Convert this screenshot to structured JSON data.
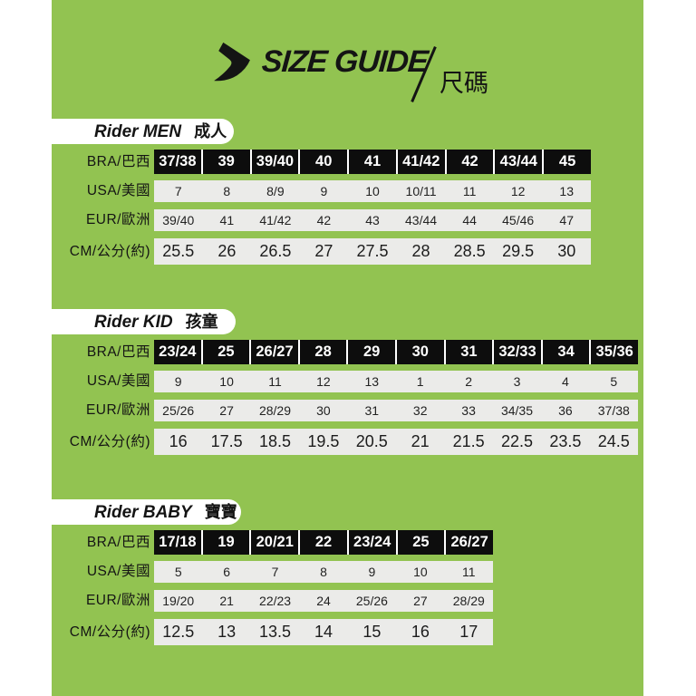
{
  "colors": {
    "panel_green": "#92c351",
    "cell_black": "#0d0d0d",
    "row_gray": "#ebebe9",
    "pill_white": "#ffffff",
    "text_black": "#141414"
  },
  "header": {
    "logo_icon": "rider-swoosh-logo",
    "title": "SIZE GUIDE",
    "subtitle": "尺碼"
  },
  "row_labels": {
    "bra": "BRA/巴西",
    "usa": "USA/美國",
    "eur": "EUR/歐洲",
    "cm": "CM/公分(約)"
  },
  "sections": [
    {
      "id": "men",
      "brand": "Rider MEN",
      "cjk": "成人",
      "bra": [
        "37/38",
        "39",
        "39/40",
        "40",
        "41",
        "41/42",
        "42",
        "43/44",
        "45"
      ],
      "usa": [
        "7",
        "8",
        "8/9",
        "9",
        "10",
        "10/11",
        "11",
        "12",
        "13"
      ],
      "eur": [
        "39/40",
        "41",
        "41/42",
        "42",
        "43",
        "43/44",
        "44",
        "45/46",
        "47"
      ],
      "cm": [
        "25.5",
        "26",
        "26.5",
        "27",
        "27.5",
        "28",
        "28.5",
        "29.5",
        "30"
      ]
    },
    {
      "id": "kid",
      "brand": "Rider KID",
      "cjk": "孩童",
      "bra": [
        "23/24",
        "25",
        "26/27",
        "28",
        "29",
        "30",
        "31",
        "32/33",
        "34",
        "35/36"
      ],
      "usa": [
        "9",
        "10",
        "11",
        "12",
        "13",
        "1",
        "2",
        "3",
        "4",
        "5"
      ],
      "eur": [
        "25/26",
        "27",
        "28/29",
        "30",
        "31",
        "32",
        "33",
        "34/35",
        "36",
        "37/38"
      ],
      "cm": [
        "16",
        "17.5",
        "18.5",
        "19.5",
        "20.5",
        "21",
        "21.5",
        "22.5",
        "23.5",
        "24.5"
      ]
    },
    {
      "id": "baby",
      "brand": "Rider BABY",
      "cjk": "寶寶",
      "bra": [
        "17/18",
        "19",
        "20/21",
        "22",
        "23/24",
        "25",
        "26/27"
      ],
      "usa": [
        "5",
        "6",
        "7",
        "8",
        "9",
        "10",
        "11"
      ],
      "eur": [
        "19/20",
        "21",
        "22/23",
        "24",
        "25/26",
        "27",
        "28/29"
      ],
      "cm": [
        "12.5",
        "13",
        "13.5",
        "14",
        "15",
        "16",
        "17"
      ]
    }
  ]
}
